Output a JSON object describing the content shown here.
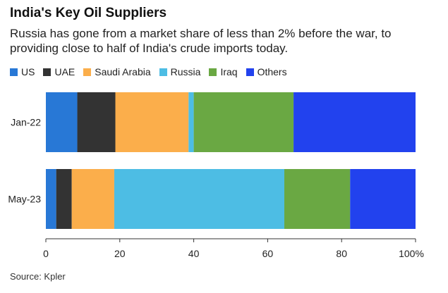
{
  "title": "India's Key Oil Suppliers",
  "subtitle": "Russia has gone from a market share of less than 2% before the war, to providing close to half of India's crude imports today.",
  "source": "Source: Kpler",
  "colors": {
    "US": "#2878d6",
    "UAE": "#333333",
    "Saudi Arabia": "#fbae4b",
    "Russia": "#4dbde4",
    "Iraq": "#6aa843",
    "Others": "#2242ee"
  },
  "chart_data": {
    "type": "bar",
    "orientation": "horizontal",
    "stacked": true,
    "categories": [
      "Jan-22",
      "May-23"
    ],
    "series": [
      {
        "name": "US",
        "values": [
          8.5,
          2.8
        ]
      },
      {
        "name": "UAE",
        "values": [
          10.3,
          4.2
        ]
      },
      {
        "name": "Saudi Arabia",
        "values": [
          19.8,
          11.5
        ]
      },
      {
        "name": "Russia",
        "values": [
          1.4,
          46.0
        ]
      },
      {
        "name": "Iraq",
        "values": [
          27.0,
          17.8
        ]
      },
      {
        "name": "Others",
        "values": [
          33.0,
          17.7
        ]
      }
    ],
    "xlim": [
      0,
      100
    ],
    "xticks": [
      "0",
      "20",
      "40",
      "60",
      "80",
      "100%"
    ],
    "legend": "top-left",
    "grid": false
  }
}
